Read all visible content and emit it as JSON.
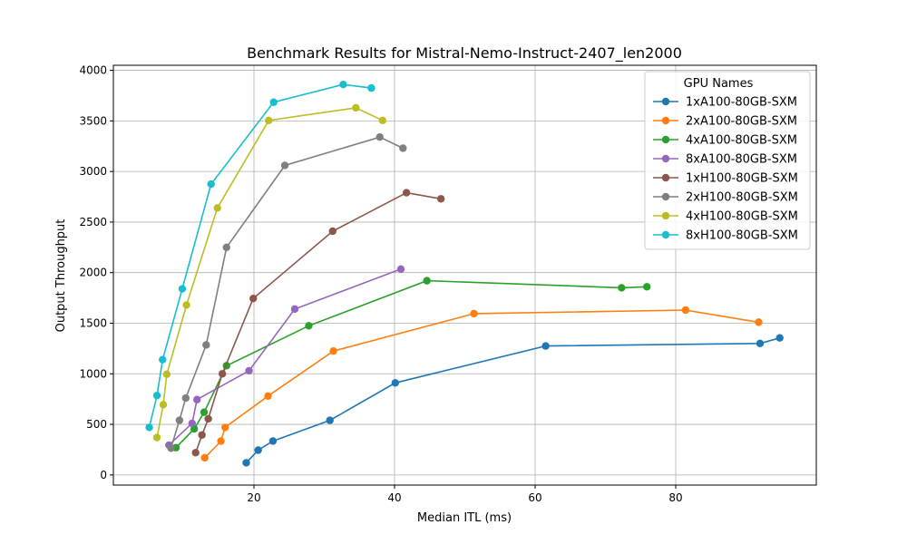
{
  "chart_data": {
    "type": "line",
    "title": "Benchmark Results for Mistral-Nemo-Instruct-2407_len2000",
    "xlabel": "Median ITL (ms)",
    "ylabel": "Output Throughput",
    "xlim": [
      0,
      100
    ],
    "ylim": [
      -100,
      4050
    ],
    "xticks": [
      20,
      40,
      60,
      80
    ],
    "yticks": [
      0,
      500,
      1000,
      1500,
      2000,
      2500,
      3000,
      3500,
      4000
    ],
    "grid": true,
    "legend": {
      "title": "GPU Names",
      "placement": "top-right"
    },
    "series": [
      {
        "name": "1xA100-80GB-SXM",
        "color": "#1f77b4",
        "x": [
          18.9,
          20.6,
          22.7,
          30.8,
          40.1,
          61.5,
          92.0,
          94.8
        ],
        "y": [
          120,
          245,
          335,
          540,
          910,
          1275,
          1300,
          1355
        ]
      },
      {
        "name": "2xA100-80GB-SXM",
        "color": "#ff7f0e",
        "x": [
          13.0,
          15.3,
          15.9,
          22.0,
          31.3,
          51.3,
          81.4,
          91.8
        ],
        "y": [
          170,
          335,
          470,
          780,
          1225,
          1595,
          1630,
          1510
        ]
      },
      {
        "name": "4xA100-80GB-SXM",
        "color": "#2ca02c",
        "x": [
          8.9,
          11.5,
          12.9,
          16.1,
          27.8,
          44.6,
          72.3,
          75.9
        ],
        "y": [
          270,
          455,
          620,
          1080,
          1475,
          1920,
          1850,
          1860
        ]
      },
      {
        "name": "8xA100-80GB-SXM",
        "color": "#9467bd",
        "x": [
          7.9,
          11.2,
          11.9,
          19.3,
          25.8,
          40.9
        ],
        "y": [
          295,
          510,
          745,
          1030,
          1640,
          2035
        ]
      },
      {
        "name": "1xH100-80GB-SXM",
        "color": "#8c564b",
        "x": [
          11.7,
          12.6,
          13.5,
          15.5,
          19.9,
          31.2,
          41.7,
          46.6
        ],
        "y": [
          220,
          395,
          555,
          1000,
          1745,
          2410,
          2790,
          2730
        ]
      },
      {
        "name": "2xH100-80GB-SXM",
        "color": "#7f7f7f",
        "x": [
          8.2,
          9.4,
          10.3,
          13.2,
          16.1,
          24.4,
          37.9,
          41.2
        ],
        "y": [
          265,
          540,
          760,
          1285,
          2250,
          3060,
          3340,
          3230
        ]
      },
      {
        "name": "4xH100-80GB-SXM",
        "color": "#bcbd22",
        "x": [
          6.2,
          7.1,
          7.6,
          10.4,
          14.8,
          22.1,
          34.5,
          38.3
        ],
        "y": [
          370,
          695,
          995,
          1680,
          2640,
          3505,
          3630,
          3505
        ]
      },
      {
        "name": "8xH100-80GB-SXM",
        "color": "#17becf",
        "x": [
          5.1,
          6.2,
          7.0,
          9.8,
          13.9,
          22.8,
          32.7,
          36.7
        ],
        "y": [
          470,
          785,
          1140,
          1840,
          2875,
          3685,
          3860,
          3825
        ]
      }
    ]
  }
}
